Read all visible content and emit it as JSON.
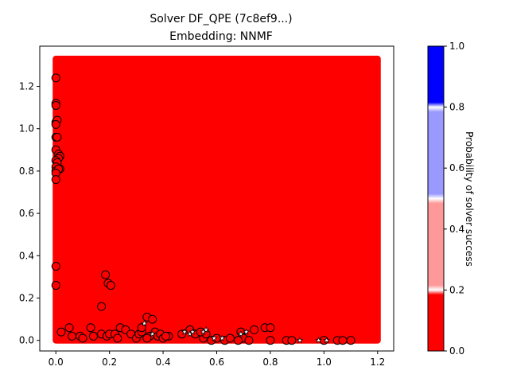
{
  "chart_data": {
    "type": "scatter",
    "title": "Solver DF_QPE (7c8ef9...)",
    "subtitle": "Embedding: NNMF",
    "xlabel": "",
    "ylabel": "",
    "xlim": [
      -0.06,
      1.26
    ],
    "ylim": [
      -0.05,
      1.39
    ],
    "x_ticks": [
      "0.0",
      "0.2",
      "0.4",
      "0.6",
      "0.8",
      "1.0",
      "1.2"
    ],
    "y_ticks": [
      "0.0",
      "0.2",
      "0.4",
      "0.6",
      "0.8",
      "1.0",
      "1.2"
    ],
    "grid": false,
    "background_fill": {
      "x_range": [
        0.0,
        1.2
      ],
      "y_range": [
        0.0,
        1.33
      ],
      "color": "#ff0000",
      "probability": 0.0
    },
    "colorbar": {
      "label": "Probability of solver success",
      "ticks": [
        "0.0",
        "0.2",
        "0.4",
        "0.6",
        "0.8",
        "1.0"
      ],
      "range": [
        0.0,
        1.0
      ],
      "bands": [
        {
          "from": 0.0,
          "to": 0.2,
          "color": "#ff0000"
        },
        {
          "from": 0.2,
          "to": 0.5,
          "color": "#ff9999"
        },
        {
          "from": 0.5,
          "to": 0.8,
          "color": "#9999ff"
        },
        {
          "from": 0.8,
          "to": 1.0,
          "color": "#0000ff"
        }
      ]
    },
    "series": [
      {
        "marker": "circle",
        "edge_color": "#000000",
        "face_color": "#ff0000",
        "points": [
          [
            0.0,
            1.24
          ],
          [
            0.0,
            1.12
          ],
          [
            0.0,
            1.11
          ],
          [
            0.0,
            1.03
          ],
          [
            0.005,
            1.04
          ],
          [
            0.0,
            1.02
          ],
          [
            0.0,
            0.96
          ],
          [
            0.005,
            0.96
          ],
          [
            0.0,
            0.9
          ],
          [
            0.01,
            0.88
          ],
          [
            0.015,
            0.87
          ],
          [
            0.01,
            0.86
          ],
          [
            0.0,
            0.85
          ],
          [
            0.005,
            0.84
          ],
          [
            0.0,
            0.82
          ],
          [
            0.0,
            0.8
          ],
          [
            0.015,
            0.81
          ],
          [
            0.01,
            0.81
          ],
          [
            0.0,
            0.79
          ],
          [
            0.0,
            0.76
          ],
          [
            0.0,
            0.35
          ],
          [
            0.0,
            0.26
          ],
          [
            0.185,
            0.31
          ],
          [
            0.195,
            0.27
          ],
          [
            0.205,
            0.26
          ],
          [
            0.17,
            0.16
          ],
          [
            0.02,
            0.04
          ],
          [
            0.05,
            0.06
          ],
          [
            0.06,
            0.02
          ],
          [
            0.09,
            0.02
          ],
          [
            0.1,
            0.01
          ],
          [
            0.13,
            0.06
          ],
          [
            0.14,
            0.02
          ],
          [
            0.17,
            0.03
          ],
          [
            0.19,
            0.02
          ],
          [
            0.2,
            0.03
          ],
          [
            0.22,
            0.03
          ],
          [
            0.23,
            0.01
          ],
          [
            0.24,
            0.06
          ],
          [
            0.26,
            0.05
          ],
          [
            0.28,
            0.03
          ],
          [
            0.3,
            0.01
          ],
          [
            0.31,
            0.03
          ],
          [
            0.32,
            0.04
          ],
          [
            0.34,
            0.11
          ],
          [
            0.35,
            0.02
          ],
          [
            0.36,
            0.1
          ],
          [
            0.37,
            0.04
          ],
          [
            0.38,
            0.02
          ],
          [
            0.39,
            0.03
          ],
          [
            0.4,
            0.01
          ],
          [
            0.42,
            0.02
          ],
          [
            0.47,
            0.03
          ],
          [
            0.5,
            0.05
          ],
          [
            0.52,
            0.03
          ],
          [
            0.55,
            0.01
          ],
          [
            0.56,
            0.03
          ],
          [
            0.58,
            0.0
          ],
          [
            0.6,
            0.01
          ],
          [
            0.63,
            0.0
          ],
          [
            0.65,
            0.01
          ],
          [
            0.69,
            0.04
          ],
          [
            0.7,
            0.01
          ],
          [
            0.72,
            0.0
          ],
          [
            0.74,
            0.05
          ],
          [
            0.78,
            0.06
          ],
          [
            0.8,
            0.06
          ],
          [
            0.8,
            0.0
          ],
          [
            0.86,
            0.0
          ],
          [
            0.88,
            0.0
          ],
          [
            1.0,
            0.0
          ],
          [
            1.05,
            0.0
          ],
          [
            1.07,
            0.0
          ],
          [
            1.1,
            0.0
          ],
          [
            0.34,
            0.01
          ],
          [
            0.41,
            0.02
          ],
          [
            0.54,
            0.04
          ],
          [
            0.68,
            0.0
          ],
          [
            0.32,
            0.06
          ]
        ]
      },
      {
        "marker": "star",
        "edge_color": "#000000",
        "face_color": "#ffffff",
        "points": [
          [
            0.33,
            0.08
          ],
          [
            0.36,
            0.03
          ],
          [
            0.48,
            0.04
          ],
          [
            0.5,
            0.03
          ],
          [
            0.51,
            0.04
          ],
          [
            0.55,
            0.04
          ],
          [
            0.56,
            0.05
          ],
          [
            0.62,
            0.01
          ],
          [
            0.69,
            0.03
          ],
          [
            0.71,
            0.04
          ],
          [
            0.91,
            0.0
          ],
          [
            0.98,
            0.0
          ],
          [
            1.01,
            0.0
          ],
          [
            0.59,
            0.01
          ]
        ]
      }
    ]
  }
}
